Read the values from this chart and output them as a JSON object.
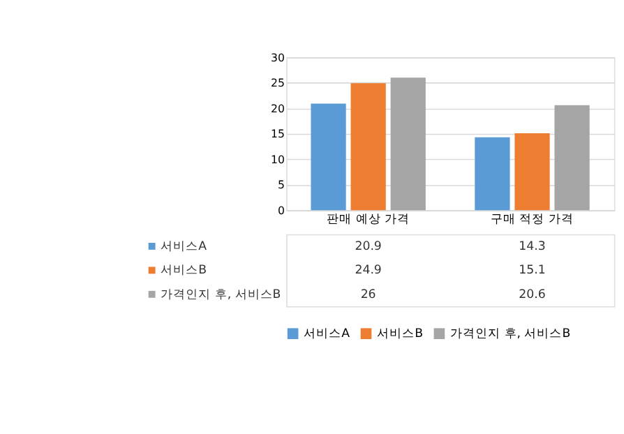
{
  "chart_data": {
    "type": "bar",
    "categories": [
      "판매 예상 가격",
      "구매 적정 가격"
    ],
    "series": [
      {
        "name": "서비스A",
        "color": "#5b9bd5",
        "values": [
          20.9,
          14.3
        ]
      },
      {
        "name": "서비스B",
        "color": "#ed7d31",
        "values": [
          24.9,
          15.1
        ]
      },
      {
        "name": "가격인지 후, 서비스B",
        "color": "#a5a5a5",
        "values": [
          26,
          20.6
        ]
      }
    ],
    "ylim": [
      0,
      30
    ],
    "yticks": [
      0,
      5,
      10,
      15,
      20,
      25,
      30
    ],
    "grid": "y",
    "legend": "bottom",
    "data_labels": true
  }
}
